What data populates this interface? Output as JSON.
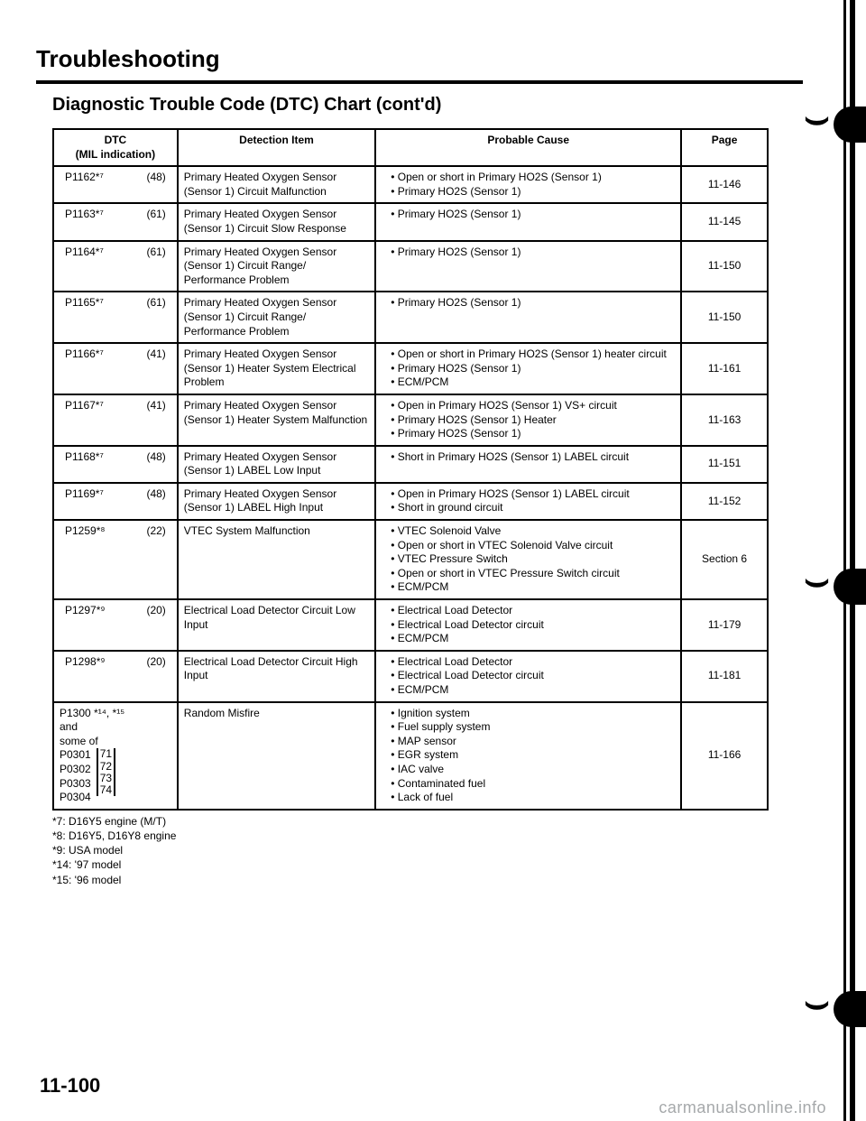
{
  "title": "Troubleshooting",
  "subtitle": "Diagnostic Trouble Code (DTC) Chart (cont'd)",
  "headers": {
    "dtc": "DTC\n(MIL indication)",
    "detection": "Detection Item",
    "cause": "Probable Cause",
    "page": "Page"
  },
  "rows": [
    {
      "code": "P1162*⁷",
      "mil": "(48)",
      "detection": "Primary Heated Oxygen Sensor (Sensor 1) Circuit Malfunction",
      "causes": [
        "Open or short in Primary HO2S (Sensor 1)",
        "Primary HO2S (Sensor 1)"
      ],
      "page": "11-146"
    },
    {
      "code": "P1163*⁷",
      "mil": "(61)",
      "detection": "Primary Heated Oxygen Sensor (Sensor 1) Circuit Slow Response",
      "causes": [
        "Primary HO2S (Sensor 1)"
      ],
      "page": "11-145"
    },
    {
      "code": "P1164*⁷",
      "mil": "(61)",
      "detection": "Primary Heated Oxygen Sensor (Sensor 1) Circuit Range/ Performance Problem",
      "causes": [
        "Primary HO2S (Sensor 1)"
      ],
      "page": "11-150"
    },
    {
      "code": "P1165*⁷",
      "mil": "(61)",
      "detection": "Primary Heated Oxygen Sensor (Sensor 1) Circuit Range/ Performance Problem",
      "causes": [
        "Primary HO2S (Sensor 1)"
      ],
      "page": "11-150"
    },
    {
      "code": "P1166*⁷",
      "mil": "(41)",
      "detection": "Primary Heated Oxygen Sensor (Sensor 1) Heater System Electrical Problem",
      "causes": [
        "Open or short in Primary HO2S (Sensor 1) heater circuit",
        "Primary HO2S (Sensor 1)",
        "ECM/PCM"
      ],
      "page": "11-161"
    },
    {
      "code": "P1167*⁷",
      "mil": "(41)",
      "detection": "Primary Heated Oxygen Sensor (Sensor 1) Heater System Malfunction",
      "causes": [
        "Open in Primary HO2S (Sensor 1) VS+ circuit",
        "Primary HO2S (Sensor 1) Heater",
        "Primary HO2S (Sensor 1)"
      ],
      "page": "11-163"
    },
    {
      "code": "P1168*⁷",
      "mil": "(48)",
      "detection": "Primary Heated Oxygen Sensor (Sensor 1) LABEL Low Input",
      "causes": [
        "Short in Primary HO2S (Sensor 1) LABEL circuit"
      ],
      "page": "11-151"
    },
    {
      "code": "P1169*⁷",
      "mil": "(48)",
      "detection": "Primary Heated Oxygen Sensor (Sensor 1) LABEL High Input",
      "causes": [
        "Open in Primary HO2S (Sensor 1) LABEL circuit",
        "Short in ground circuit"
      ],
      "page": "11-152"
    },
    {
      "code": "P1259*⁸",
      "mil": "(22)",
      "detection": "VTEC System Malfunction",
      "causes": [
        "VTEC Solenoid Valve",
        "Open or short in VTEC Solenoid Valve circuit",
        "VTEC Pressure Switch",
        "Open or short in VTEC Pressure Switch circuit",
        "ECM/PCM"
      ],
      "page": "Section 6"
    },
    {
      "code": "P1297*⁹",
      "mil": "(20)",
      "detection": "Electrical Load Detector Circuit Low Input",
      "causes": [
        "Electrical Load Detector",
        "Electrical Load Detector circuit",
        "ECM/PCM"
      ],
      "page": "11-179"
    },
    {
      "code": "P1298*⁹",
      "mil": "(20)",
      "detection": "Electrical Load Detector Circuit High Input",
      "causes": [
        "Electrical Load Detector",
        "Electrical Load Detector circuit",
        "ECM/PCM"
      ],
      "page": "11-181"
    }
  ],
  "misfire_row": {
    "header_line": "P1300 *¹⁴, *¹⁵",
    "and": "and",
    "some_of": "some of",
    "codes": [
      "P0301",
      "P0302",
      "P0303",
      "P0304"
    ],
    "mils": [
      "71",
      "72",
      "73",
      "74"
    ],
    "detection": "Random Misfire",
    "causes": [
      "Ignition system",
      "Fuel supply system",
      "MAP sensor",
      "EGR system",
      "IAC valve",
      "Contaminated fuel",
      "Lack of fuel"
    ],
    "page": "11-166"
  },
  "footnotes": [
    "*7: D16Y5 engine (M/T)",
    "*8: D16Y5, D16Y8 engine",
    "*9: USA model",
    "*14: '97 model",
    "*15: '96 model"
  ],
  "page_number": "11-100",
  "watermark": "carmanualsonline.info"
}
